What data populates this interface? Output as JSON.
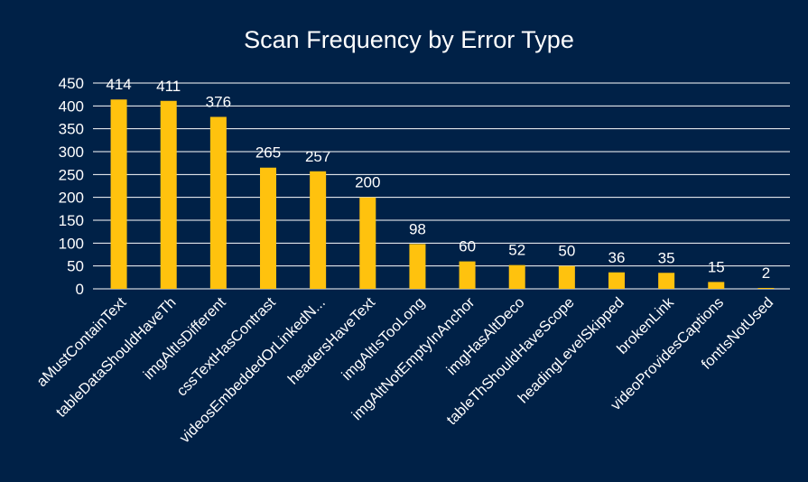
{
  "chart_data": {
    "type": "bar",
    "title": "Scan Frequency by Error Type",
    "xlabel": "",
    "ylabel": "",
    "ylim": [
      0,
      450
    ],
    "yticks": [
      0,
      50,
      100,
      150,
      200,
      250,
      300,
      350,
      400,
      450
    ],
    "grid": true,
    "legend": "none",
    "categories": [
      "aMustContainText",
      "tableDataShouldHaveTh",
      "imgAltIsDifferent",
      "cssTextHasContrast",
      "videosEmbeddedOrLinkedN...",
      "headersHaveText",
      "imgAltIsTooLong",
      "imgAltNotEmptyInAnchor",
      "imgHasAltDeco",
      "tableThShouldHaveScope",
      "headingLevelSkipped",
      "brokenLink",
      "videoProvidesCaptions",
      "fontIsNotUsed"
    ],
    "values": [
      414,
      411,
      376,
      265,
      257,
      200,
      98,
      60,
      52,
      50,
      36,
      35,
      15,
      2
    ],
    "colors": {
      "background": "#002147",
      "bar": "#FFC20E",
      "grid": "#ffffff",
      "text": "#ffffff"
    }
  }
}
